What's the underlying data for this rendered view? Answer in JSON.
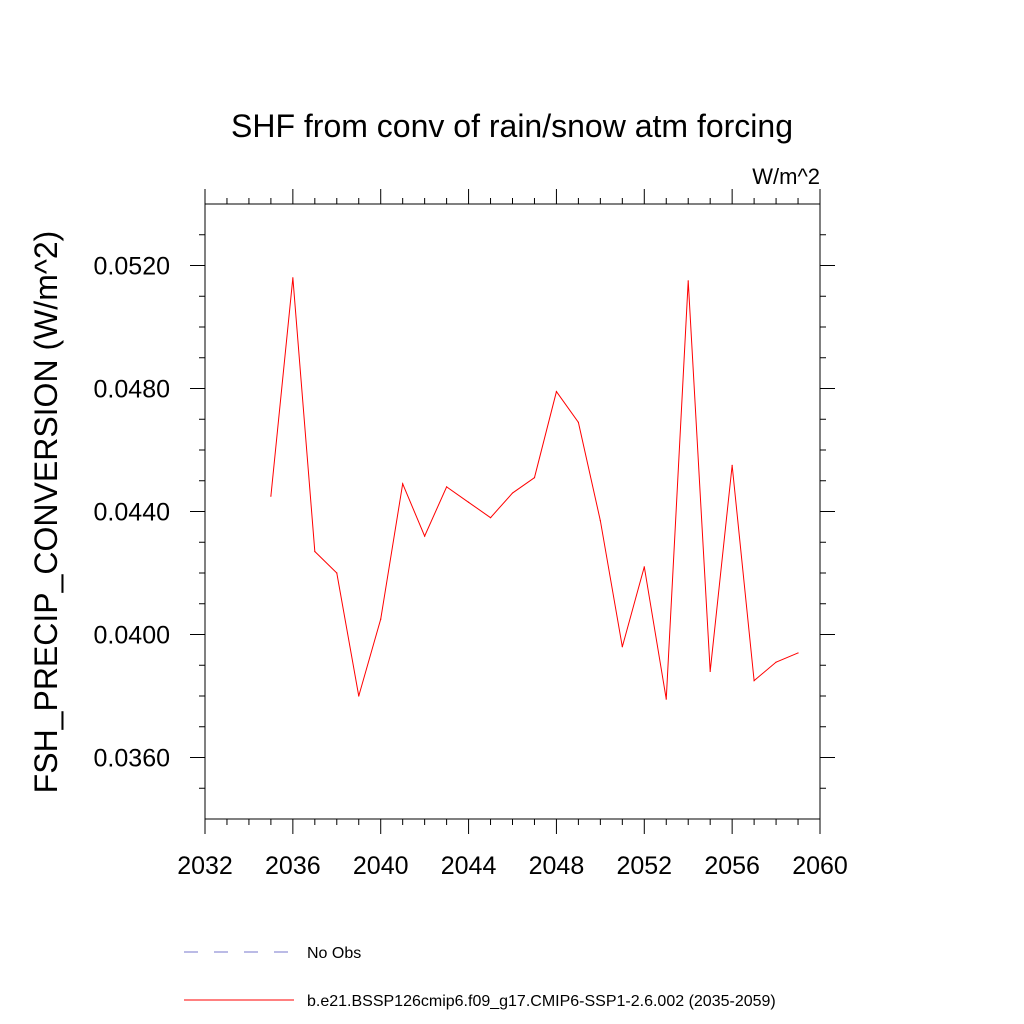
{
  "chart_data": {
    "type": "line",
    "title": "SHF from conv of rain/snow atm forcing",
    "units_label": "W/m^2",
    "xlabel": "",
    "ylabel": "FSH_PRECIP_CONVERSION  (W/m^2)",
    "xlim": [
      2032,
      2060
    ],
    "ylim": [
      0.034,
      0.054
    ],
    "x_ticks": [
      2032,
      2036,
      2040,
      2044,
      2048,
      2052,
      2056,
      2060
    ],
    "x_tick_labels": [
      "2032",
      "2036",
      "2040",
      "2044",
      "2048",
      "2052",
      "2056",
      "2060"
    ],
    "y_ticks": [
      0.036,
      0.04,
      0.044,
      0.048,
      0.052
    ],
    "y_tick_labels": [
      "0.0360",
      "0.0400",
      "0.0440",
      "0.0480",
      "0.0520"
    ],
    "grid": false,
    "legend_position": "bottom",
    "legend": [
      {
        "label": "No Obs",
        "color": "#7777cc",
        "style": "dashed"
      },
      {
        "label": "b.e21.BSSP126cmip6.f09_g17.CMIP6-SSP1-2.6.002 (2035-2059)",
        "color": "#ff0000",
        "style": "solid"
      }
    ],
    "series": [
      {
        "name": "b.e21.BSSP126cmip6.f09_g17.CMIP6-SSP1-2.6.002 (2035-2059)",
        "color": "#ff0000",
        "x": [
          2035,
          2036,
          2037,
          2038,
          2039,
          2040,
          2041,
          2042,
          2043,
          2044,
          2045,
          2046,
          2047,
          2048,
          2049,
          2050,
          2051,
          2052,
          2053,
          2054,
          2055,
          2056,
          2057,
          2058,
          2059
        ],
        "values": [
          0.0445,
          0.0516,
          0.0427,
          0.042,
          0.038,
          0.0405,
          0.0449,
          0.0432,
          0.0448,
          0.0443,
          0.0438,
          0.0446,
          0.0451,
          0.0479,
          0.0469,
          0.0437,
          0.0396,
          0.0422,
          0.0379,
          0.0515,
          0.0388,
          0.0455,
          0.0385,
          0.0391,
          0.0394
        ]
      }
    ]
  }
}
